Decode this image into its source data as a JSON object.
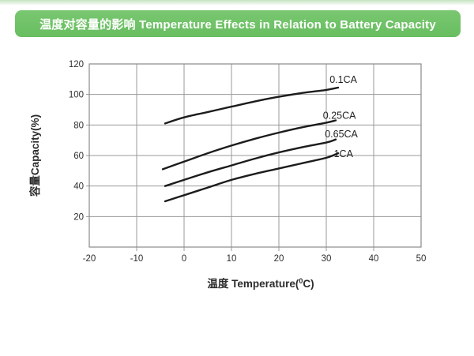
{
  "header": {
    "title": "温度对容量的影响 Temperature Effects in Relation to Battery Capacity",
    "background_color": "#68be60",
    "background_color_light": "#79c771",
    "text_color": "#ffffff"
  },
  "chart_data": {
    "type": "line",
    "title": "温度对容量的影响 Temperature Effects in Relation to Battery Capacity",
    "xlabel": "温度 Temperature(°C)",
    "xlabel_parts": {
      "pre": "温度 Temperature(",
      "sup": "0",
      "post": "C)"
    },
    "ylabel": "容量Capacity(%)",
    "xlim": [
      -20,
      50
    ],
    "ylim": [
      0,
      120
    ],
    "xticks": [
      -20,
      -10,
      0,
      10,
      20,
      30,
      40,
      50
    ],
    "yticks": [
      20,
      40,
      60,
      80,
      100,
      120
    ],
    "grid": true,
    "line_color": "#1c1c1c",
    "series": [
      {
        "name": "0.1CA",
        "points": [
          [
            -4,
            81
          ],
          [
            0,
            85
          ],
          [
            5,
            88.5
          ],
          [
            10,
            92
          ],
          [
            15,
            95.5
          ],
          [
            20,
            98.5
          ],
          [
            25,
            101
          ],
          [
            30,
            103
          ],
          [
            32.5,
            104.5
          ]
        ],
        "label_at": [
          30.7,
          107.5
        ]
      },
      {
        "name": "0.25CA",
        "points": [
          [
            -4.5,
            51
          ],
          [
            0,
            56
          ],
          [
            5,
            61.5
          ],
          [
            10,
            66.5
          ],
          [
            15,
            71
          ],
          [
            20,
            75
          ],
          [
            25,
            78.5
          ],
          [
            30,
            81.5
          ],
          [
            32,
            83
          ]
        ],
        "label_at": [
          29.3,
          84
        ]
      },
      {
        "name": "0.65CA",
        "points": [
          [
            -4,
            40
          ],
          [
            0,
            44
          ],
          [
            5,
            49
          ],
          [
            10,
            53.5
          ],
          [
            15,
            58
          ],
          [
            20,
            62
          ],
          [
            25,
            65.5
          ],
          [
            30,
            68.5
          ],
          [
            32,
            70.5
          ]
        ],
        "label_at": [
          29.7,
          72
        ]
      },
      {
        "name": "1CA",
        "points": [
          [
            -4,
            30
          ],
          [
            0,
            34
          ],
          [
            5,
            39
          ],
          [
            10,
            44
          ],
          [
            15,
            48
          ],
          [
            20,
            51.5
          ],
          [
            25,
            55
          ],
          [
            30,
            58.5
          ],
          [
            32.5,
            61.5
          ]
        ],
        "label_at": [
          31.6,
          59
        ]
      }
    ]
  }
}
